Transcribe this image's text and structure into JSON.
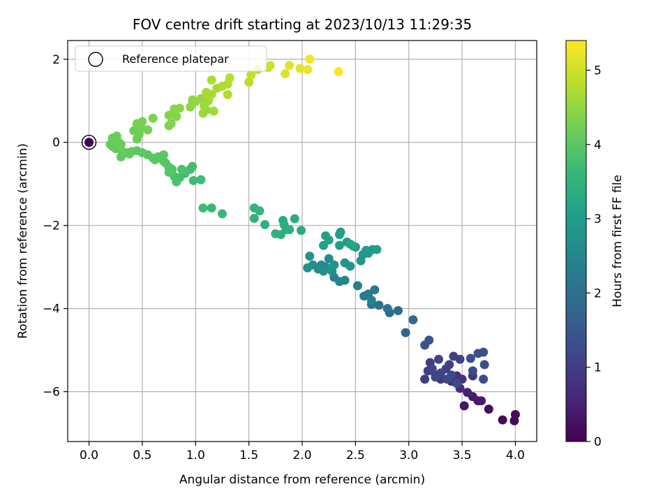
{
  "chart_data": {
    "type": "scatter",
    "title": "FOV centre drift starting at 2023/10/13 11:29:35",
    "xlabel": "Angular distance from reference (arcmin)",
    "ylabel": "Rotation from reference (arcmin)",
    "xlim": [
      -0.2,
      4.2
    ],
    "ylim": [
      -7.2,
      2.45
    ],
    "xticks": [
      0.0,
      0.5,
      1.0,
      1.5,
      2.0,
      2.5,
      3.0,
      3.5,
      4.0
    ],
    "xtick_labels": [
      "0.0",
      "0.5",
      "1.0",
      "1.5",
      "2.0",
      "2.5",
      "3.0",
      "3.5",
      "4.0"
    ],
    "yticks": [
      2,
      0,
      -2,
      -4,
      -6
    ],
    "ytick_labels": [
      "2",
      "0",
      "−2",
      "−4",
      "−6"
    ],
    "grid": true,
    "legend": {
      "placement": "top-left",
      "entries": [
        "Reference platepar"
      ]
    },
    "reference_point": {
      "x": 0.0,
      "y": 0.0
    },
    "colorbar": {
      "label": "Hours from first FF file",
      "range": [
        0,
        5.4
      ],
      "ticks": [
        0,
        1,
        2,
        3,
        4,
        5
      ],
      "tick_labels": [
        "0",
        "1",
        "2",
        "3",
        "4",
        "5"
      ],
      "colormap": "viridis",
      "colors": [
        "#440154",
        "#482878",
        "#3e4989",
        "#31688e",
        "#26828e",
        "#1f9e89",
        "#35b779",
        "#6ece58",
        "#b5de2b",
        "#fde725"
      ]
    },
    "points": [
      [
        0.0,
        0.0,
        0.02
      ],
      [
        3.88,
        -6.68,
        0.1
      ],
      [
        3.99,
        -6.7,
        0.12
      ],
      [
        4.0,
        -6.55,
        0.15
      ],
      [
        3.75,
        -6.42,
        0.2
      ],
      [
        3.65,
        -6.22,
        0.25
      ],
      [
        3.52,
        -6.34,
        0.3
      ],
      [
        3.6,
        -6.12,
        0.4
      ],
      [
        3.68,
        -6.22,
        0.42
      ],
      [
        3.55,
        -6.02,
        0.5
      ],
      [
        3.48,
        -5.92,
        0.6
      ],
      [
        3.4,
        -5.75,
        0.7
      ],
      [
        3.45,
        -5.62,
        0.78
      ],
      [
        3.5,
        -5.7,
        0.82
      ],
      [
        3.6,
        -5.62,
        0.88
      ],
      [
        3.3,
        -5.7,
        0.9
      ],
      [
        3.25,
        -5.6,
        0.92
      ],
      [
        3.15,
        -5.7,
        0.95
      ],
      [
        3.18,
        -5.5,
        0.98
      ],
      [
        3.2,
        -5.3,
        1.0
      ],
      [
        3.35,
        -5.45,
        1.02
      ],
      [
        3.38,
        -5.35,
        1.04
      ],
      [
        3.42,
        -5.15,
        1.06
      ],
      [
        3.48,
        -5.22,
        1.08
      ],
      [
        3.28,
        -5.22,
        1.1
      ],
      [
        3.22,
        -5.45,
        1.12
      ],
      [
        3.3,
        -5.55,
        1.14
      ],
      [
        3.25,
        -5.65,
        1.15
      ],
      [
        3.4,
        -5.6,
        1.16
      ],
      [
        3.36,
        -5.7,
        1.18
      ],
      [
        3.45,
        -5.8,
        1.2
      ],
      [
        3.6,
        -5.5,
        1.22
      ],
      [
        3.7,
        -5.7,
        1.24
      ],
      [
        3.71,
        -5.35,
        1.26
      ],
      [
        3.65,
        -5.08,
        1.28
      ],
      [
        3.7,
        -5.05,
        1.3
      ],
      [
        3.58,
        -5.2,
        1.32
      ],
      [
        3.15,
        -4.88,
        1.4
      ],
      [
        3.19,
        -4.76,
        1.45
      ],
      [
        2.97,
        -4.58,
        1.7
      ],
      [
        3.04,
        -4.27,
        1.8
      ],
      [
        2.9,
        -4.05,
        1.9
      ],
      [
        2.82,
        -4.1,
        1.95
      ],
      [
        2.72,
        -3.92,
        2.0
      ],
      [
        2.8,
        -4.0,
        2.05
      ],
      [
        2.65,
        -3.9,
        2.1
      ],
      [
        2.68,
        -3.55,
        2.15
      ],
      [
        2.62,
        -3.65,
        2.2
      ],
      [
        2.58,
        -3.7,
        2.25
      ],
      [
        2.52,
        -3.45,
        2.3
      ],
      [
        2.65,
        -3.8,
        2.35
      ],
      [
        2.3,
        -3.25,
        2.4
      ],
      [
        2.35,
        -3.35,
        2.45
      ],
      [
        2.4,
        -3.32,
        2.5
      ],
      [
        2.22,
        -3.0,
        2.55
      ],
      [
        2.18,
        -2.95,
        2.6
      ],
      [
        2.28,
        -3.1,
        2.62
      ],
      [
        2.15,
        -3.05,
        2.64
      ],
      [
        2.25,
        -2.8,
        2.66
      ],
      [
        2.1,
        -2.95,
        2.68
      ],
      [
        2.05,
        -3.02,
        2.7
      ],
      [
        2.2,
        -3.1,
        2.72
      ],
      [
        2.3,
        -2.95,
        2.74
      ],
      [
        2.07,
        -2.74,
        2.78
      ],
      [
        2.27,
        -3.03,
        2.8
      ],
      [
        2.4,
        -2.9,
        2.82
      ],
      [
        2.45,
        -2.98,
        2.84
      ],
      [
        2.55,
        -2.85,
        2.86
      ],
      [
        2.5,
        -2.52,
        2.88
      ],
      [
        2.57,
        -2.7,
        2.9
      ],
      [
        2.62,
        -2.67,
        2.92
      ],
      [
        2.6,
        -2.6,
        2.94
      ],
      [
        2.66,
        -2.58,
        2.96
      ],
      [
        2.7,
        -2.58,
        2.97
      ],
      [
        2.42,
        -2.4,
        2.98
      ],
      [
        2.35,
        -2.48,
        3.0
      ],
      [
        2.36,
        -2.16,
        3.05
      ],
      [
        2.35,
        -2.22,
        3.06
      ],
      [
        2.2,
        -2.48,
        3.08
      ],
      [
        2.22,
        -2.25,
        3.1
      ],
      [
        2.25,
        -2.35,
        3.12
      ],
      [
        2.45,
        -2.45,
        3.14
      ],
      [
        2.48,
        -2.5,
        3.16
      ],
      [
        1.99,
        -2.12,
        3.3
      ],
      [
        1.93,
        -1.84,
        3.32
      ],
      [
        1.85,
        -2.1,
        3.34
      ],
      [
        1.82,
        -1.88,
        3.36
      ],
      [
        1.83,
        -1.98,
        3.38
      ],
      [
        1.88,
        -2.1,
        3.4
      ],
      [
        1.8,
        -2.22,
        3.42
      ],
      [
        1.75,
        -2.2,
        3.44
      ],
      [
        1.65,
        -1.98,
        3.46
      ],
      [
        1.55,
        -1.83,
        3.48
      ],
      [
        1.55,
        -1.58,
        3.52
      ],
      [
        1.6,
        -1.65,
        3.54
      ],
      [
        1.25,
        -1.72,
        3.62
      ],
      [
        1.15,
        -1.58,
        3.64
      ],
      [
        1.07,
        -1.58,
        3.66
      ],
      [
        1.05,
        -0.9,
        3.7
      ],
      [
        0.98,
        -0.92,
        3.72
      ],
      [
        0.95,
        -0.65,
        3.74
      ],
      [
        0.97,
        -0.58,
        3.76
      ],
      [
        0.9,
        -0.75,
        3.78
      ],
      [
        0.85,
        -0.85,
        3.8
      ],
      [
        0.8,
        -0.82,
        3.82
      ],
      [
        0.82,
        -0.95,
        3.84
      ],
      [
        0.87,
        -0.65,
        3.86
      ],
      [
        0.75,
        -0.6,
        3.88
      ],
      [
        0.78,
        -0.65,
        3.9
      ],
      [
        0.7,
        -0.45,
        3.92
      ],
      [
        0.72,
        -0.5,
        3.94
      ],
      [
        0.75,
        -0.72,
        3.96
      ],
      [
        0.65,
        -0.35,
        3.98
      ],
      [
        0.7,
        -0.3,
        3.99
      ],
      [
        0.62,
        -0.42,
        4.0
      ],
      [
        0.55,
        -0.3,
        4.01
      ],
      [
        0.6,
        -0.38,
        4.02
      ],
      [
        0.5,
        -0.25,
        4.03
      ],
      [
        0.45,
        -0.2,
        4.04
      ],
      [
        0.4,
        -0.22,
        4.05
      ],
      [
        0.35,
        -0.25,
        4.06
      ],
      [
        0.38,
        -0.28,
        4.07
      ],
      [
        0.3,
        -0.35,
        4.08
      ],
      [
        0.25,
        -0.15,
        4.09
      ],
      [
        0.3,
        -0.18,
        4.1
      ],
      [
        0.22,
        -0.1,
        4.11
      ],
      [
        0.2,
        -0.05,
        4.12
      ],
      [
        0.25,
        0.05,
        4.13
      ],
      [
        0.22,
        0.1,
        4.14
      ],
      [
        0.26,
        0.15,
        4.15
      ],
      [
        0.28,
        0.0,
        4.16
      ],
      [
        0.3,
        -0.05,
        4.17
      ],
      [
        0.45,
        0.08,
        4.18
      ],
      [
        0.42,
        0.28,
        4.2
      ],
      [
        0.47,
        0.2,
        4.22
      ],
      [
        0.49,
        0.35,
        4.24
      ],
      [
        0.55,
        0.3,
        4.26
      ],
      [
        0.45,
        0.45,
        4.28
      ],
      [
        0.5,
        0.5,
        4.3
      ],
      [
        0.6,
        0.58,
        4.32
      ],
      [
        0.75,
        0.4,
        4.35
      ],
      [
        0.77,
        0.45,
        4.36
      ],
      [
        0.75,
        0.65,
        4.38
      ],
      [
        0.82,
        0.62,
        4.4
      ],
      [
        0.8,
        0.8,
        4.42
      ],
      [
        0.85,
        0.82,
        4.44
      ],
      [
        0.95,
        0.85,
        4.48
      ],
      [
        0.97,
        1.02,
        4.5
      ],
      [
        1.0,
        0.98,
        4.52
      ],
      [
        1.05,
        1.05,
        4.54
      ],
      [
        1.07,
        0.7,
        4.56
      ],
      [
        1.1,
        0.78,
        4.58
      ],
      [
        1.08,
        0.88,
        4.6
      ],
      [
        1.12,
        1.0,
        4.62
      ],
      [
        1.17,
        0.75,
        4.64
      ],
      [
        1.1,
        1.2,
        4.66
      ],
      [
        1.15,
        1.15,
        4.68
      ],
      [
        1.2,
        1.3,
        4.7
      ],
      [
        1.15,
        1.5,
        4.72
      ],
      [
        1.25,
        1.35,
        4.74
      ],
      [
        1.3,
        1.4,
        4.76
      ],
      [
        1.3,
        1.15,
        4.78
      ],
      [
        1.32,
        1.55,
        4.8
      ],
      [
        1.5,
        1.45,
        4.86
      ],
      [
        1.52,
        1.62,
        4.88
      ],
      [
        1.58,
        1.75,
        4.92
      ],
      [
        1.68,
        1.8,
        4.96
      ],
      [
        1.7,
        1.85,
        5.0
      ],
      [
        1.84,
        1.65,
        5.1
      ],
      [
        1.88,
        1.85,
        5.15
      ],
      [
        1.98,
        1.78,
        5.2
      ],
      [
        2.05,
        1.75,
        5.25
      ],
      [
        2.07,
        2.0,
        5.3
      ],
      [
        2.34,
        1.7,
        5.38
      ]
    ]
  }
}
